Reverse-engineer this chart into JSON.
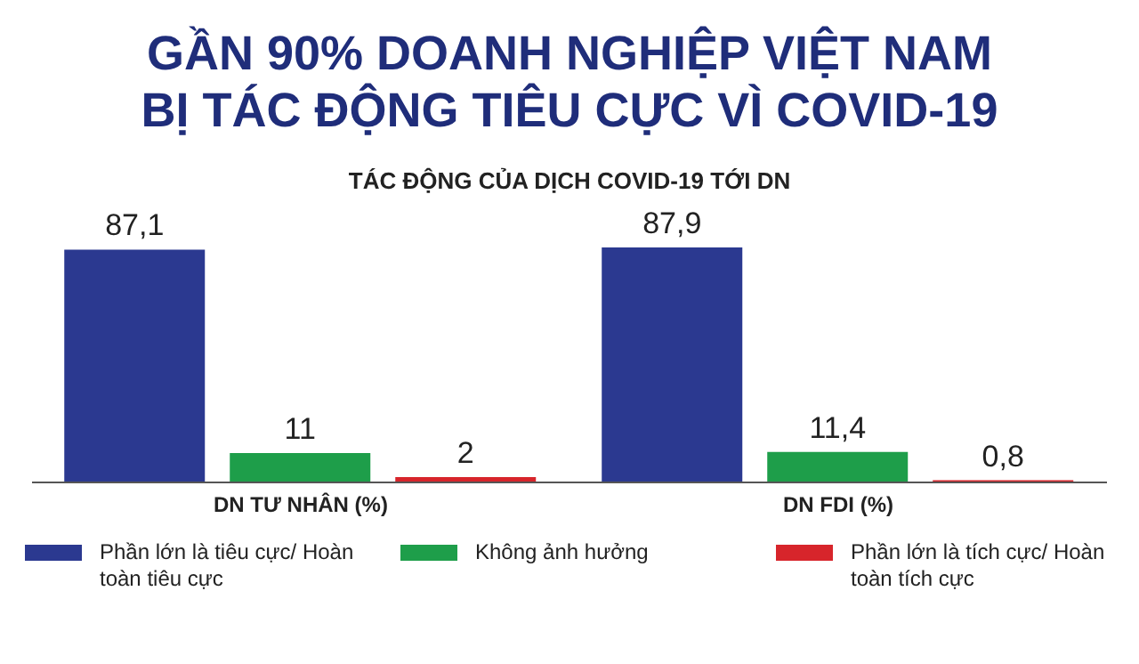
{
  "chart_data": {
    "type": "bar",
    "title": "GẦN 90% DOANH NGHIỆP VIỆT NAM BỊ TÁC ĐỘNG TIÊU CỰC VÌ COVID-19",
    "subtitle": "TÁC ĐỘNG CỦA DỊCH COVID-19 TỚI DN",
    "categories": [
      "DN TƯ NHÂN (%)",
      "DN FDI (%)"
    ],
    "series": [
      {
        "name": "Phần lớn là tiêu cực/ Hoàn toàn tiêu cực",
        "color": "#2b3990",
        "values": [
          87.1,
          87.9
        ],
        "value_labels": [
          "87,1",
          "87,9"
        ]
      },
      {
        "name": "Không ảnh hưởng",
        "color": "#1e9e4a",
        "values": [
          11,
          11.4
        ],
        "value_labels": [
          "11",
          "11,4"
        ]
      },
      {
        "name": "Phần lớn là tích cực/ Hoàn toàn tích cực",
        "color": "#d7252b",
        "values": [
          2,
          0.8
        ],
        "value_labels": [
          "2",
          "0,8"
        ]
      }
    ],
    "legend": "bottom"
  }
}
